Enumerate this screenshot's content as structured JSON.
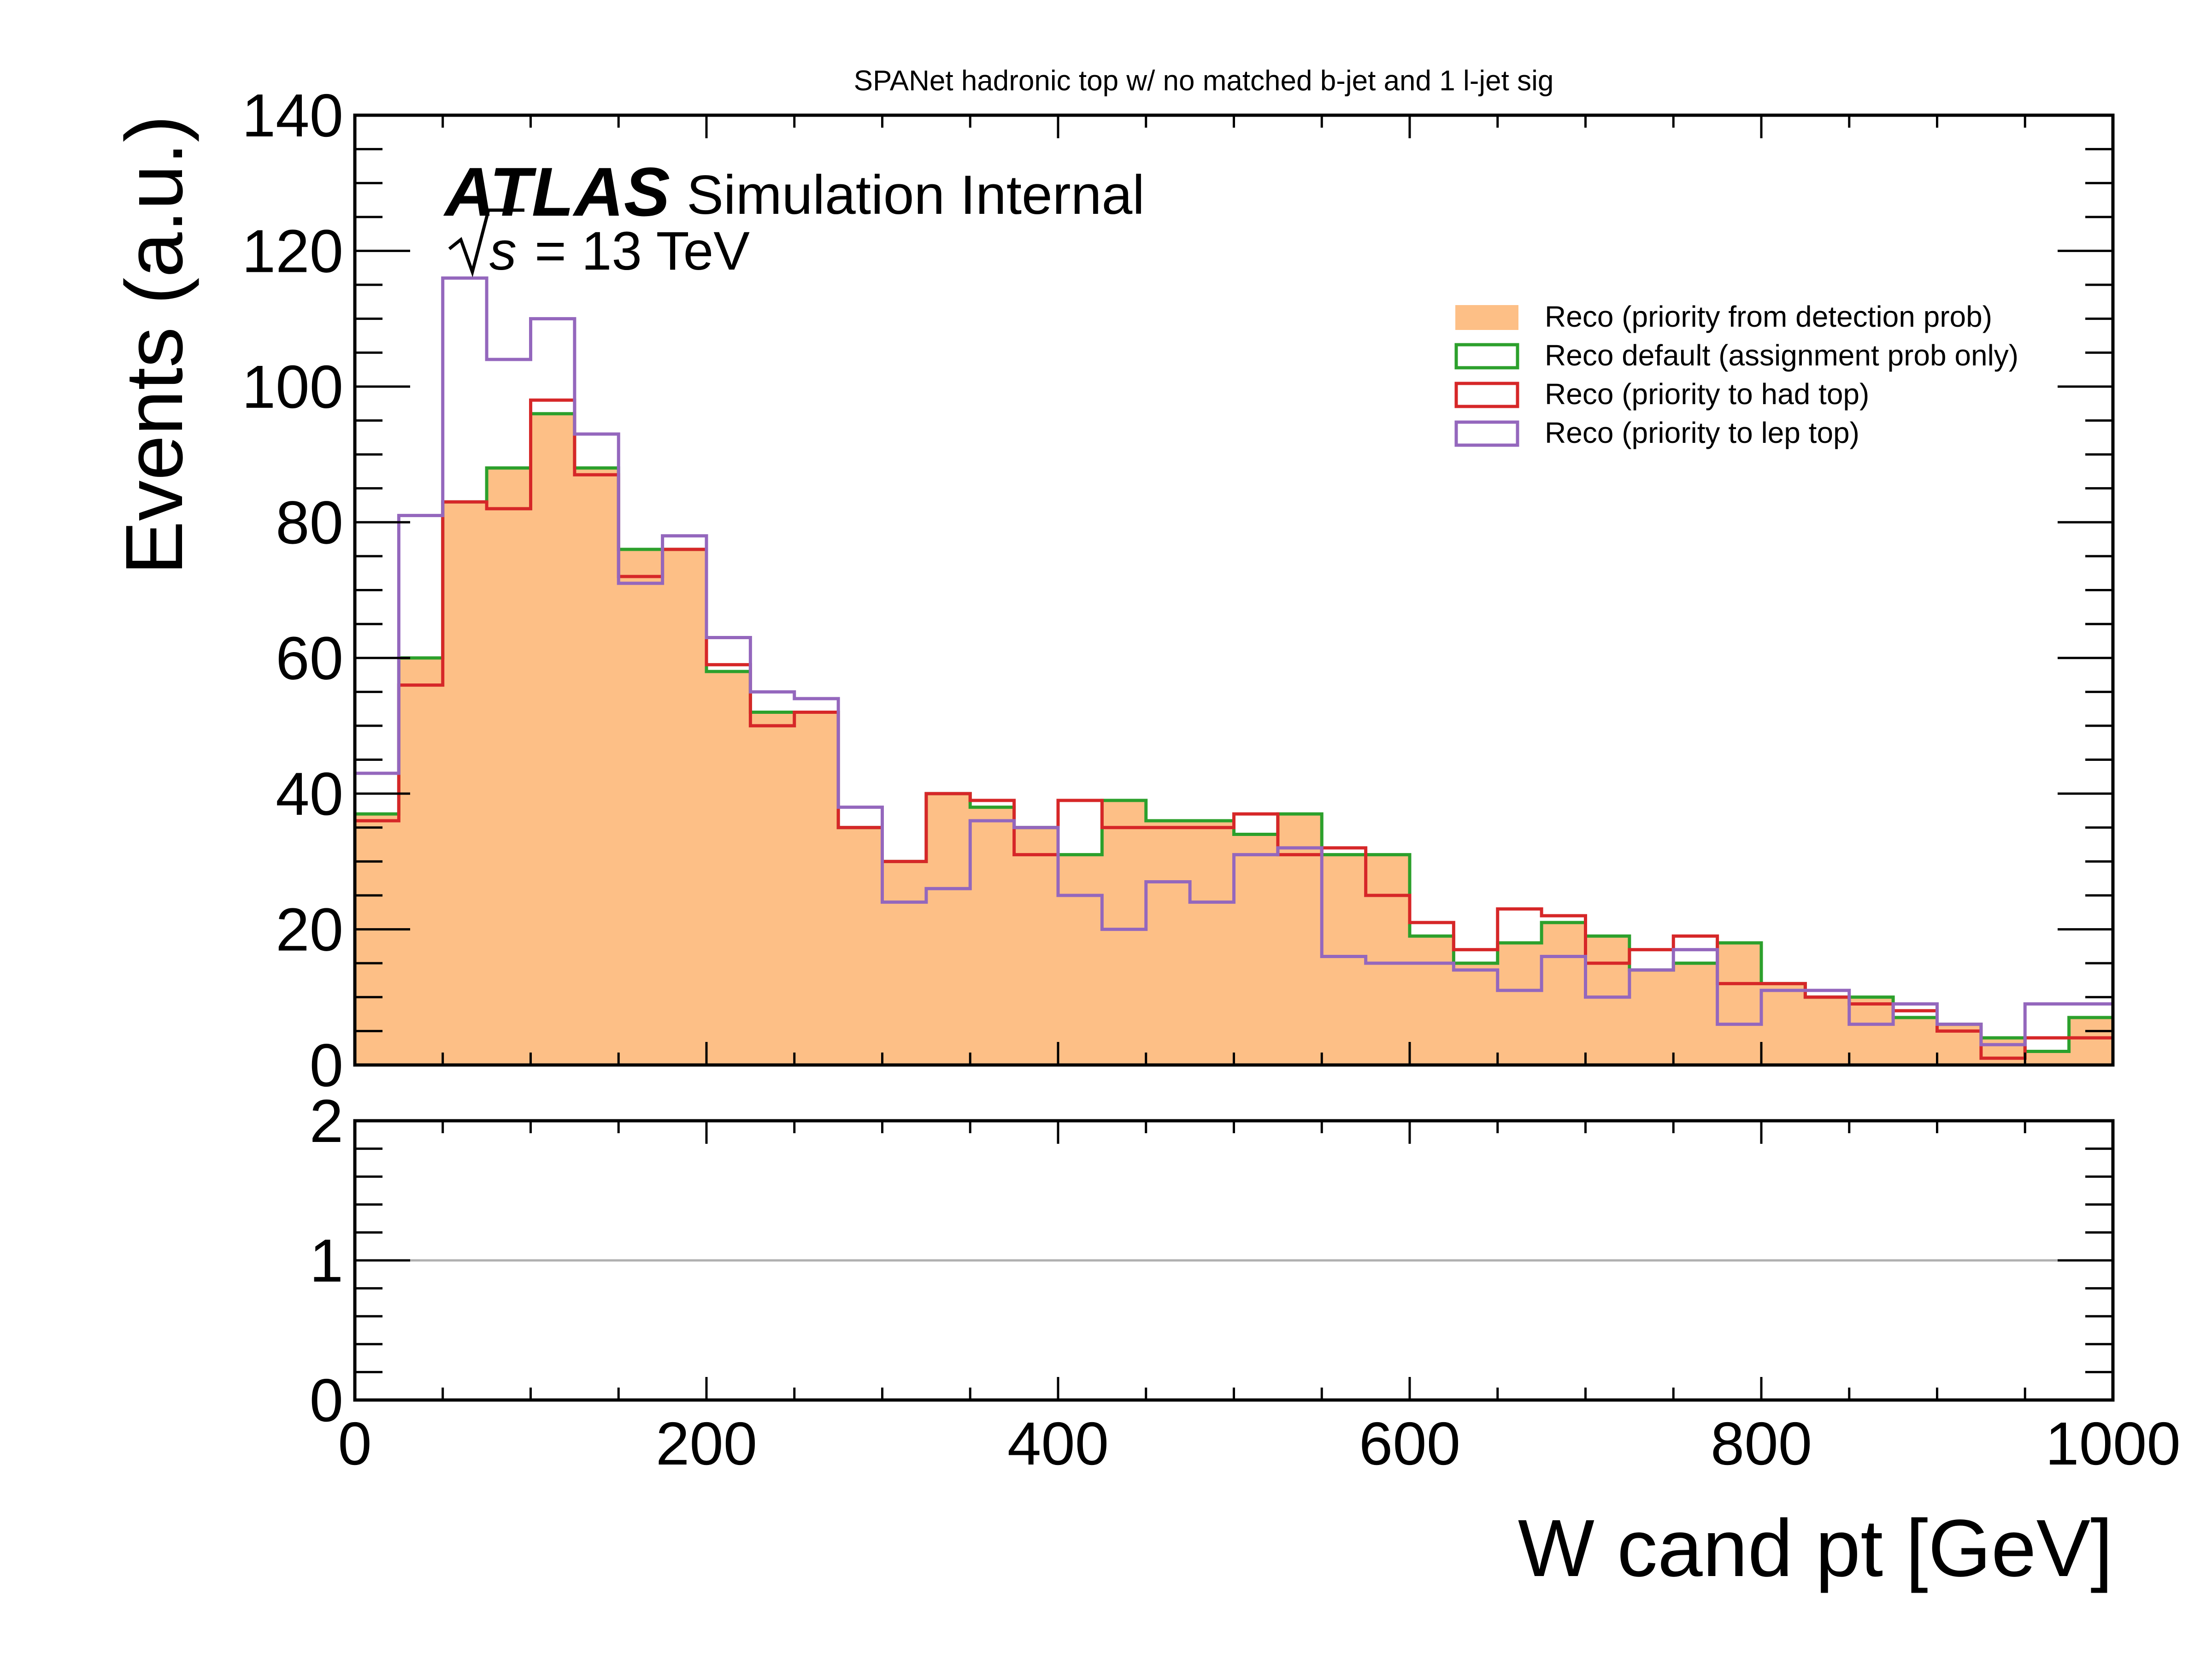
{
  "chart_data": {
    "type": "step-histogram",
    "title": "SPANet hadronic top w/ no matched b-jet and 1 l-jet sig",
    "xlabel": "W cand pt [GeV]",
    "ylabel": "Events (a.u.)",
    "xlim": [
      0,
      1000
    ],
    "ylim": [
      0,
      140
    ],
    "bin_edges": [
      0,
      25,
      50,
      75,
      100,
      125,
      150,
      175,
      200,
      225,
      250,
      275,
      300,
      325,
      350,
      375,
      400,
      425,
      450,
      475,
      500,
      525,
      550,
      575,
      600,
      625,
      650,
      675,
      700,
      725,
      750,
      775,
      800,
      825,
      850,
      875,
      900,
      925,
      950,
      975,
      1000
    ],
    "x_ticks": [
      0,
      200,
      400,
      600,
      800,
      1000
    ],
    "x_tick_labels": [
      "0",
      "200",
      "400",
      "600",
      "800",
      "1000"
    ],
    "y_ticks": [
      0,
      20,
      40,
      60,
      80,
      100,
      120,
      140
    ],
    "y_tick_labels": [
      "0",
      "20",
      "40",
      "60",
      "80",
      "100",
      "120",
      "140"
    ],
    "atlas_label": "ATLAS",
    "atlas_sublabel": "Simulation Internal",
    "energy_label": "= 13 TeV",
    "energy_symbol": "s",
    "legend_position": "upper-right",
    "series": [
      {
        "name": "Reco (priority from detection prob)",
        "style": "filled",
        "color": "#fdbf86",
        "values": [
          37,
          60,
          83,
          88,
          96,
          88,
          76,
          76,
          58,
          52,
          52,
          35,
          30,
          40,
          38,
          35,
          31,
          39,
          36,
          36,
          34,
          37,
          31,
          31,
          19,
          15,
          18,
          21,
          19,
          14,
          15,
          18,
          12,
          10,
          10,
          7,
          6,
          4,
          2,
          7
        ]
      },
      {
        "name": "Reco default (assignment prob only)",
        "style": "step",
        "color": "#2ca02c",
        "values": [
          37,
          60,
          83,
          88,
          96,
          88,
          76,
          76,
          58,
          52,
          52,
          35,
          30,
          40,
          38,
          35,
          31,
          39,
          36,
          36,
          34,
          37,
          31,
          31,
          19,
          15,
          18,
          21,
          19,
          14,
          15,
          18,
          12,
          10,
          10,
          7,
          6,
          4,
          2,
          7
        ]
      },
      {
        "name": "Reco (priority to had top)",
        "style": "step",
        "color": "#d62728",
        "values": [
          36,
          56,
          83,
          82,
          98,
          87,
          72,
          76,
          59,
          50,
          52,
          35,
          30,
          40,
          39,
          31,
          39,
          35,
          35,
          35,
          37,
          31,
          32,
          25,
          21,
          17,
          23,
          22,
          15,
          17,
          19,
          12,
          12,
          10,
          9,
          8,
          5,
          1,
          4,
          4
        ]
      },
      {
        "name": "Reco (priority to lep top)",
        "style": "step",
        "color": "#9467bd",
        "values": [
          43,
          81,
          116,
          104,
          110,
          93,
          71,
          78,
          63,
          55,
          54,
          38,
          24,
          26,
          36,
          35,
          25,
          20,
          27,
          24,
          31,
          32,
          16,
          15,
          15,
          14,
          11,
          16,
          10,
          14,
          17,
          6,
          11,
          11,
          6,
          9,
          6,
          3,
          9,
          9
        ]
      }
    ],
    "ratio_panel": {
      "ylim": [
        0,
        2
      ],
      "y_ticks": [
        0,
        1,
        2
      ],
      "y_tick_labels": [
        "0",
        "1",
        "2"
      ],
      "reference_line": 1,
      "reference_color": "#b0b0b0"
    }
  }
}
